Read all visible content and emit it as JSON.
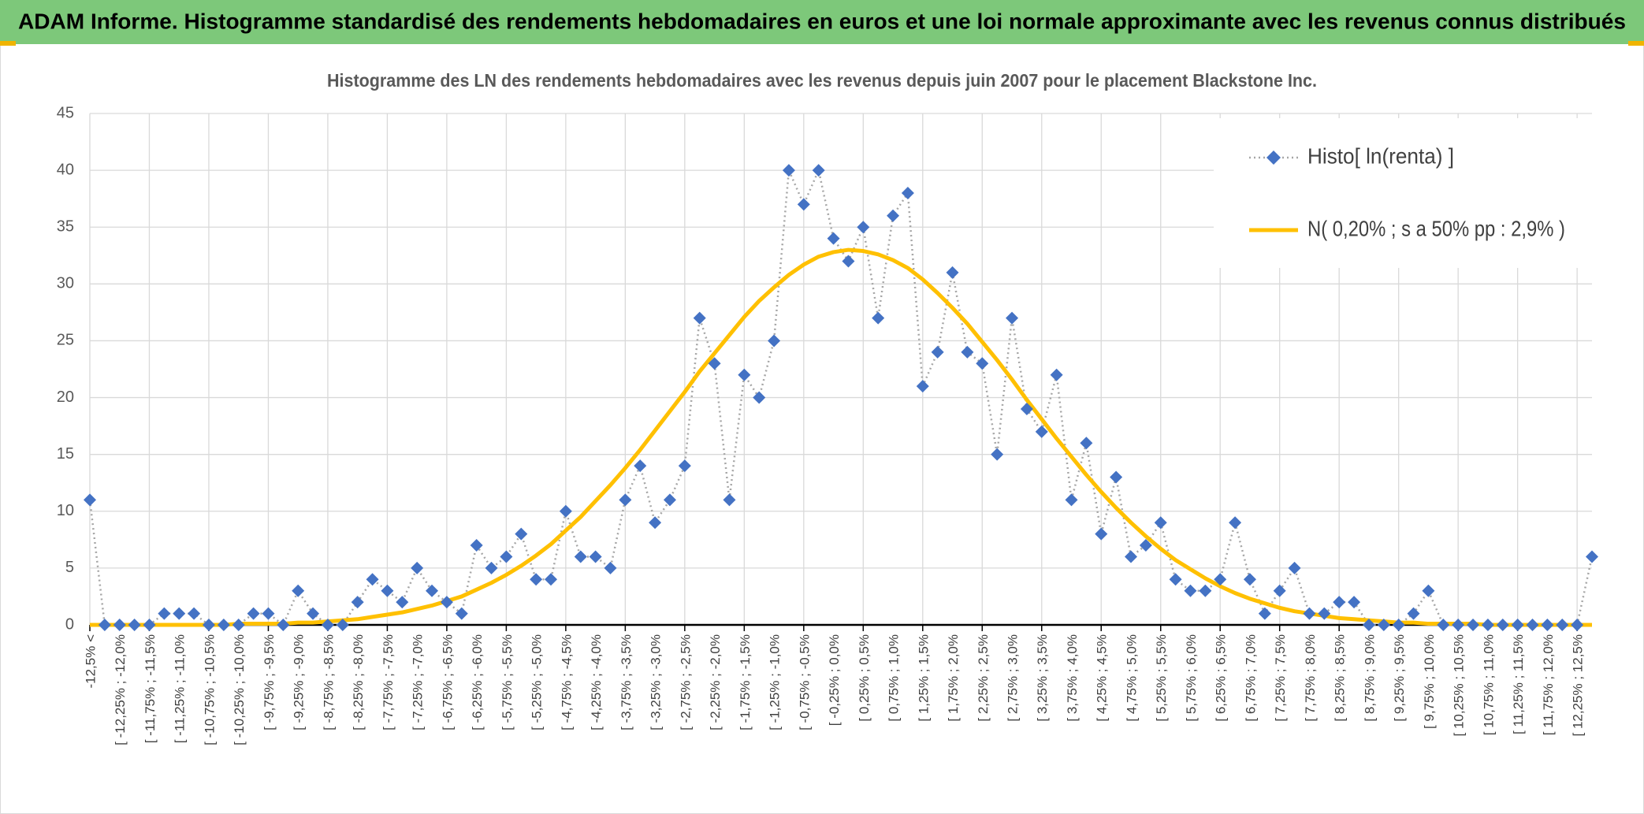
{
  "header": {
    "title": "ADAM Informe. Histogramme standardisé des rendements hebdomadaires en euros et une loi normale approximante avec les revenus connus distribués"
  },
  "chart_data": {
    "type": "line",
    "title": "Histogramme des LN des rendements hebdomadaires avec les revenus depuis juin 2007 pour le placement Blackstone Inc.",
    "categories": [
      "-12,5% <",
      null,
      "[ -12,25% ; -12,0%",
      null,
      "[ -11,75% ; -11,5%",
      null,
      "[ -11,25% ; -11,0%",
      null,
      "[ -10,75% ; -10,5%",
      null,
      "[ -10,25% ; -10,0%",
      null,
      "[ -9,75% ; -9,5%",
      null,
      "[ -9,25% ; -9,0%",
      null,
      "[ -8,75% ; -8,5%",
      null,
      "[ -8,25% ; -8,0%",
      null,
      "[ -7,75% ; -7,5%",
      null,
      "[ -7,25% ; -7,0%",
      null,
      "[ -6,75% ; -6,5%",
      null,
      "[ -6,25% ; -6,0%",
      null,
      "[ -5,75% ; -5,5%",
      null,
      "[ -5,25% ; -5,0%",
      null,
      "[ -4,75% ; -4,5%",
      null,
      "[ -4,25% ; -4,0%",
      null,
      "[ -3,75% ; -3,5%",
      null,
      "[ -3,25% ; -3,0%",
      null,
      "[ -2,75% ; -2,5%",
      null,
      "[ -2,25% ; -2,0%",
      null,
      "[ -1,75% ; -1,5%",
      null,
      "[ -1,25% ; -1,0%",
      null,
      "[ -0,75% ; -0,5%",
      null,
      "[ -0,25% ; 0,0%",
      null,
      "[ 0,25% ; 0,5%",
      null,
      "[ 0,75% ; 1,0%",
      null,
      "[ 1,25% ; 1,5%",
      null,
      "[ 1,75% ; 2,0%",
      null,
      "[ 2,25% ; 2,5%",
      null,
      "[ 2,75% ; 3,0%",
      null,
      "[ 3,25% ; 3,5%",
      null,
      "[ 3,75% ; 4,0%",
      null,
      "[ 4,25% ; 4,5%",
      null,
      "[ 4,75% ; 5,0%",
      null,
      "[ 5,25% ; 5,5%",
      null,
      "[ 5,75% ; 6,0%",
      null,
      "[ 6,25% ; 6,5%",
      null,
      "[ 6,75% ; 7,0%",
      null,
      "[ 7,25% ; 7,5%",
      null,
      "[ 7,75% ; 8,0%",
      null,
      "[ 8,25% ; 8,5%",
      null,
      "[ 8,75% ; 9,0%",
      null,
      "[ 9,25% ; 9,5%",
      null,
      "[ 9,75% ; 10,0%",
      null,
      "[ 10,25% ; 10,5%",
      null,
      "[ 10,75% ; 11,0%",
      null,
      "[ 11,25% ; 11,5%",
      null,
      "[ 11,75% ; 12,0%",
      null,
      "[ 12,25% ; 12,5%",
      null
    ],
    "series": [
      {
        "name": "Histo[ ln(renta) ]",
        "color": "#4472c4",
        "line_color": "#a6a6a6",
        "marker": "diamond",
        "values": [
          11,
          0,
          0,
          0,
          0,
          1,
          1,
          1,
          0,
          0,
          0,
          1,
          1,
          0,
          3,
          1,
          0,
          0,
          2,
          4,
          3,
          2,
          5,
          3,
          2,
          1,
          7,
          5,
          6,
          8,
          4,
          4,
          10,
          6,
          6,
          5,
          11,
          14,
          9,
          11,
          14,
          27,
          23,
          11,
          22,
          20,
          25,
          40,
          37,
          40,
          34,
          32,
          35,
          27,
          36,
          38,
          21,
          24,
          31,
          24,
          23,
          15,
          27,
          19,
          17,
          22,
          11,
          16,
          8,
          13,
          6,
          7,
          9,
          4,
          3,
          3,
          4,
          9,
          4,
          1,
          3,
          5,
          1,
          1,
          2,
          2,
          0,
          0,
          0,
          1,
          3,
          0,
          0,
          0,
          0,
          0,
          0,
          0,
          0,
          0,
          0,
          6
        ]
      },
      {
        "name": "N( 0,20% ; s a 50% pp : 2,9% )",
        "color": "#ffc000",
        "marker": "none",
        "values": [
          0,
          0,
          0,
          0,
          0,
          0,
          0,
          0,
          0,
          0,
          0.1,
          0.1,
          0.1,
          0.1,
          0.2,
          0.2,
          0.3,
          0.4,
          0.5,
          0.7,
          0.9,
          1.1,
          1.4,
          1.7,
          2.1,
          2.5,
          3.1,
          3.7,
          4.4,
          5.2,
          6.1,
          7.1,
          8.3,
          9.5,
          10.9,
          12.3,
          13.8,
          15.4,
          17.1,
          18.8,
          20.5,
          22.3,
          23.9,
          25.5,
          27.1,
          28.5,
          29.7,
          30.8,
          31.7,
          32.4,
          32.8,
          33,
          32.9,
          32.6,
          32.1,
          31.4,
          30.4,
          29.2,
          27.9,
          26.5,
          24.9,
          23.3,
          21.6,
          19.8,
          18.1,
          16.4,
          14.8,
          13.2,
          11.7,
          10.3,
          9,
          7.8,
          6.7,
          5.7,
          4.9,
          4.1,
          3.4,
          2.8,
          2.3,
          1.9,
          1.5,
          1.2,
          1,
          0.8,
          0.6,
          0.5,
          0.4,
          0.3,
          0.2,
          0.2,
          0.1,
          0.1,
          0.1,
          0.1,
          0,
          0,
          0,
          0,
          0,
          0,
          0,
          0
        ]
      }
    ],
    "ylim": [
      0,
      45
    ],
    "yticks": [
      0,
      5,
      10,
      15,
      20,
      25,
      30,
      35,
      40,
      45
    ],
    "grid": true,
    "legend": "upper right"
  }
}
